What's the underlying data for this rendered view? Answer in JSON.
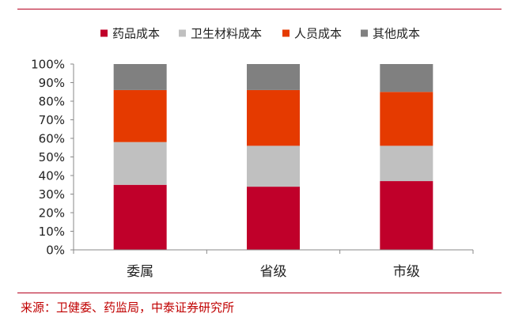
{
  "chart_data": {
    "type": "bar",
    "stacked": true,
    "percent": true,
    "categories": [
      "委属",
      "省级",
      "市级"
    ],
    "series": [
      {
        "name": "药品成本",
        "color": "#c0002a",
        "values": [
          35,
          34,
          37
        ]
      },
      {
        "name": "卫生材料成本",
        "color": "#c0c0c0",
        "values": [
          23,
          22,
          19
        ]
      },
      {
        "name": "人员成本",
        "color": "#e53a00",
        "values": [
          28,
          30,
          29
        ]
      },
      {
        "name": "其他成本",
        "color": "#808080",
        "values": [
          14,
          14,
          15
        ]
      }
    ],
    "ylim": [
      0,
      100
    ],
    "yticks": [
      "0%",
      "10%",
      "20%",
      "30%",
      "40%",
      "50%",
      "60%",
      "70%",
      "80%",
      "90%",
      "100%"
    ],
    "title": "",
    "xlabel": "",
    "ylabel": "",
    "legend_position": "top",
    "grid": false
  },
  "source": "来源：卫健委、药监局，中泰证券研究所"
}
